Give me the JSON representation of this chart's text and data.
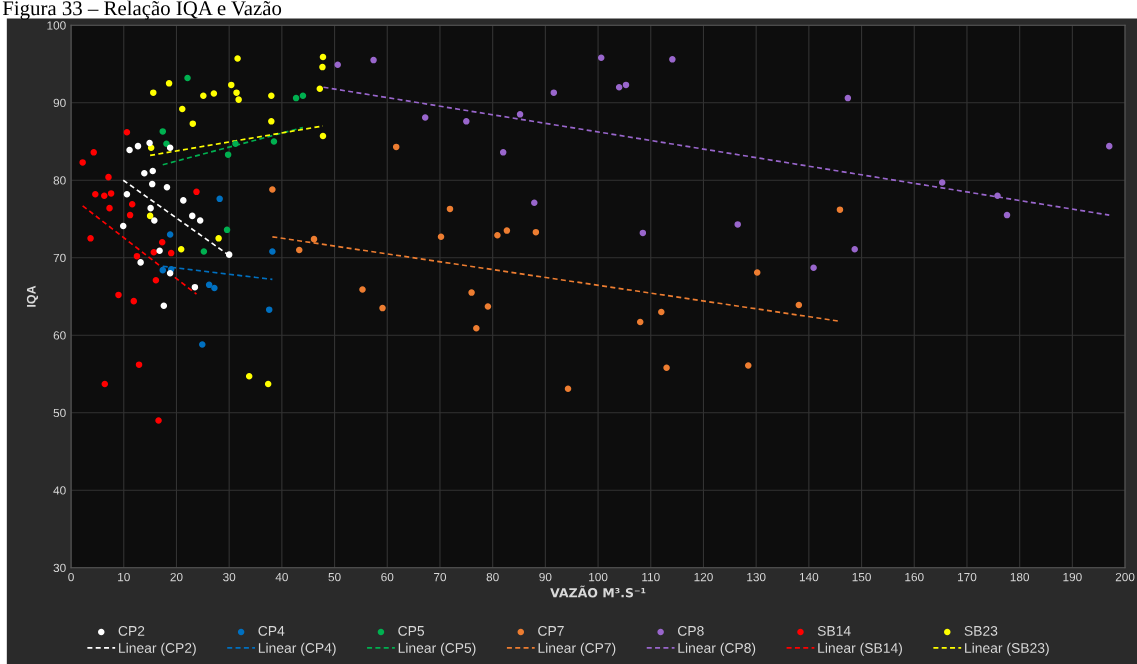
{
  "chart_data": {
    "type": "scatter",
    "title": "Figura 33 – Relação IQA e Vazão",
    "xlabel": "VAZÃO M³.S⁻¹",
    "ylabel": "IQA",
    "xlim": [
      0,
      200
    ],
    "xticks": [
      0,
      10,
      20,
      30,
      40,
      50,
      60,
      70,
      80,
      90,
      100,
      110,
      120,
      130,
      140,
      150,
      160,
      170,
      180,
      190,
      200
    ],
    "ylim": [
      30,
      100
    ],
    "yticks": [
      30,
      40,
      50,
      60,
      70,
      80,
      90,
      100
    ],
    "grid": true,
    "legend": "bottom",
    "marker": "circle",
    "series": [
      {
        "name": "CP2",
        "color": "#ffffff",
        "x": [
          11.1,
          12.7,
          14.9,
          18.8,
          13.9,
          15.5,
          15.4,
          18.2,
          10.6,
          21.3,
          15.1,
          15.8,
          23.0,
          24.5,
          9.9,
          30.0,
          16.8,
          13.2,
          18.8,
          23.5,
          17.6
        ],
        "values": [
          83.9,
          84.4,
          84.8,
          84.2,
          80.9,
          81.2,
          79.5,
          79.1,
          78.2,
          77.4,
          76.4,
          74.8,
          75.4,
          74.8,
          74.1,
          70.4,
          70.9,
          69.4,
          68.0,
          66.2,
          63.8
        ]
      },
      {
        "name": "CP4",
        "color": "#0070c0",
        "x": [
          28.2,
          18.8,
          38.2,
          17.4,
          19.0,
          26.2,
          27.2,
          37.6,
          24.9
        ],
        "values": [
          77.6,
          73.0,
          70.8,
          68.4,
          68.5,
          66.5,
          66.1,
          63.3,
          58.8
        ]
      },
      {
        "name": "CP5",
        "color": "#00b050",
        "x": [
          22.1,
          42.7,
          44.0,
          17.4,
          18.1,
          31.2,
          38.5,
          29.8,
          29.6,
          25.2
        ],
        "values": [
          93.2,
          90.6,
          90.9,
          86.3,
          84.7,
          84.7,
          85.0,
          83.3,
          73.6,
          70.8
        ]
      },
      {
        "name": "CP7",
        "color": "#ed7d31",
        "x": [
          38.2,
          46.1,
          43.3,
          61.7,
          71.9,
          70.2,
          80.9,
          82.7,
          88.2,
          55.3,
          59.1,
          76.0,
          79.1,
          112.0,
          94.3,
          76.9,
          108.0,
          113.0,
          128.5,
          145.9,
          130.2,
          138.1
        ],
        "values": [
          78.8,
          72.4,
          71.0,
          84.3,
          76.3,
          72.7,
          72.9,
          73.5,
          73.3,
          65.9,
          63.5,
          65.5,
          63.7,
          63.0,
          53.1,
          60.9,
          61.7,
          55.8,
          56.1,
          76.2,
          68.1,
          63.9
        ]
      },
      {
        "name": "CP8",
        "color": "#9966cc",
        "x": [
          50.6,
          57.4,
          100.6,
          114.1,
          104.0,
          105.3,
          91.6,
          67.2,
          75.0,
          85.2,
          82.0,
          87.9,
          108.5,
          147.4,
          197.0,
          165.3,
          175.8,
          177.6,
          126.5,
          148.7,
          140.9
        ],
        "values": [
          94.9,
          95.5,
          95.8,
          95.6,
          92.0,
          92.3,
          91.3,
          88.1,
          87.6,
          88.5,
          83.6,
          77.1,
          73.2,
          90.6,
          84.4,
          79.7,
          78.0,
          75.5,
          74.3,
          71.1,
          68.7
        ]
      },
      {
        "name": "SB14",
        "color": "#ff0000",
        "x": [
          10.6,
          4.3,
          2.2,
          7.1,
          4.6,
          6.3,
          7.6,
          23.8,
          11.6,
          7.3,
          11.2,
          3.7,
          17.3,
          15.7,
          19.0,
          12.5,
          16.1,
          9.0,
          11.9,
          12.9,
          6.4,
          16.6
        ],
        "values": [
          86.2,
          83.6,
          82.3,
          80.4,
          78.2,
          78.0,
          78.3,
          78.5,
          76.9,
          76.4,
          75.5,
          72.5,
          72.0,
          70.7,
          70.6,
          70.2,
          67.1,
          65.2,
          64.4,
          56.2,
          53.7,
          49.0
        ]
      },
      {
        "name": "SB23",
        "color": "#ffff00",
        "x": [
          31.6,
          47.8,
          47.7,
          18.6,
          15.6,
          30.4,
          31.4,
          31.8,
          25.1,
          27.1,
          38.0,
          47.2,
          21.1,
          23.1,
          38.0,
          47.8,
          15.2,
          15.0,
          28.0,
          20.9,
          33.8,
          37.4
        ],
        "values": [
          95.7,
          95.9,
          94.6,
          92.5,
          91.3,
          92.3,
          91.3,
          90.4,
          90.9,
          91.2,
          90.9,
          91.8,
          89.2,
          87.3,
          87.6,
          85.7,
          84.2,
          75.4,
          72.5,
          71.1,
          54.7,
          53.7
        ]
      },
      {
        "name": "Linear (CP2)",
        "type": "line",
        "line_style": "dashed",
        "marker": "none",
        "color": "#ffffff",
        "x": [
          9.9,
          30.0
        ],
        "values": [
          80.0,
          70.3
        ]
      },
      {
        "name": "Linear (CP4)",
        "type": "line",
        "line_style": "dashed",
        "marker": "none",
        "color": "#0070c0",
        "x": [
          17.4,
          38.2
        ],
        "values": [
          68.9,
          67.2
        ]
      },
      {
        "name": "Linear (CP5)",
        "type": "line",
        "line_style": "dashed",
        "marker": "none",
        "color": "#00b050",
        "x": [
          17.4,
          44.0
        ],
        "values": [
          82.0,
          86.8
        ]
      },
      {
        "name": "Linear (CP7)",
        "type": "line",
        "line_style": "dashed",
        "marker": "none",
        "color": "#ed7d31",
        "x": [
          38.2,
          145.9
        ],
        "values": [
          72.7,
          61.8
        ]
      },
      {
        "name": "Linear (CP8)",
        "type": "line",
        "line_style": "dashed",
        "marker": "none",
        "color": "#9966cc",
        "x": [
          47.9,
          197.0
        ],
        "values": [
          92.0,
          75.5
        ]
      },
      {
        "name": "Linear (SB14)",
        "type": "line",
        "line_style": "dashed",
        "marker": "none",
        "color": "#ff0000",
        "x": [
          2.2,
          23.8
        ],
        "values": [
          76.7,
          65.3
        ]
      },
      {
        "name": "Linear (SB23)",
        "type": "line",
        "line_style": "dashed",
        "marker": "none",
        "color": "#ffff00",
        "x": [
          15.0,
          47.8
        ],
        "values": [
          83.2,
          87.0
        ]
      }
    ]
  }
}
